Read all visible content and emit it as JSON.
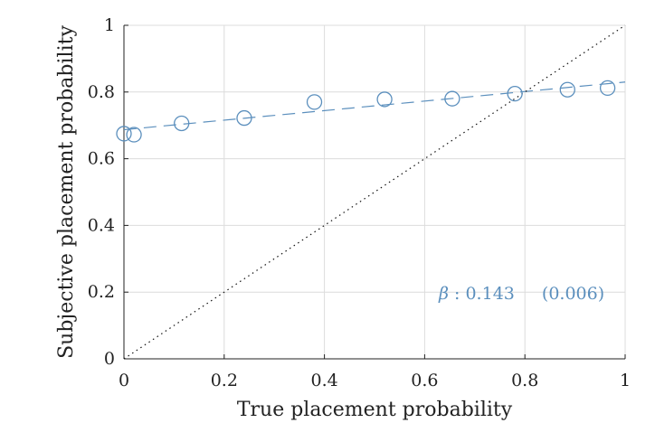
{
  "chart_data": {
    "type": "scatter",
    "xlabel": "True placement probability",
    "ylabel": "Subjective placement probability",
    "xlim": [
      0,
      1
    ],
    "ylim": [
      0,
      1
    ],
    "xticks": [
      "0",
      "0.2",
      "0.4",
      "0.6",
      "0.8",
      "1"
    ],
    "yticks": [
      "0",
      "0.2",
      "0.4",
      "0.6",
      "0.8",
      "1"
    ],
    "grid": true,
    "series": [
      {
        "kind": "points",
        "marker": "circle-open",
        "x": [
          0.0,
          0.02,
          0.115,
          0.24,
          0.38,
          0.52,
          0.655,
          0.78,
          0.885,
          0.965
        ],
        "y": [
          0.675,
          0.672,
          0.706,
          0.722,
          0.77,
          0.778,
          0.78,
          0.795,
          0.807,
          0.812
        ]
      },
      {
        "kind": "fit",
        "line_style": "dashed",
        "x": [
          0.0,
          1.0
        ],
        "y": [
          0.687,
          0.83
        ]
      },
      {
        "kind": "identity",
        "line_style": "dotted",
        "x": [
          0.0,
          1.0
        ],
        "y": [
          0.0,
          1.0
        ]
      }
    ],
    "annotation": {
      "beta_symbol": "β",
      "beta_text": ": 0.143",
      "se_text": "(0.006)"
    }
  },
  "colors": {
    "series": "#5b8fbd",
    "identity": "#111111",
    "grid": "#dcdcdc",
    "axis": "#222222"
  }
}
